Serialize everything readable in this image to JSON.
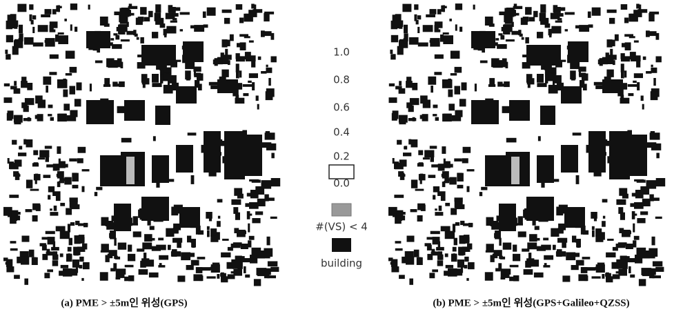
{
  "legend": {
    "scale": [
      "1.0",
      "0.8",
      "0.6",
      "0.4",
      "0.2",
      "0.0"
    ],
    "visibility_label": "#(VS) < 4",
    "building_label": "building"
  },
  "captions": [
    "(a) PME > ±5m인 위성(GPS)",
    "(b) PME > ±5m인 위성(GPS+Galileo+QZSS)"
  ]
}
